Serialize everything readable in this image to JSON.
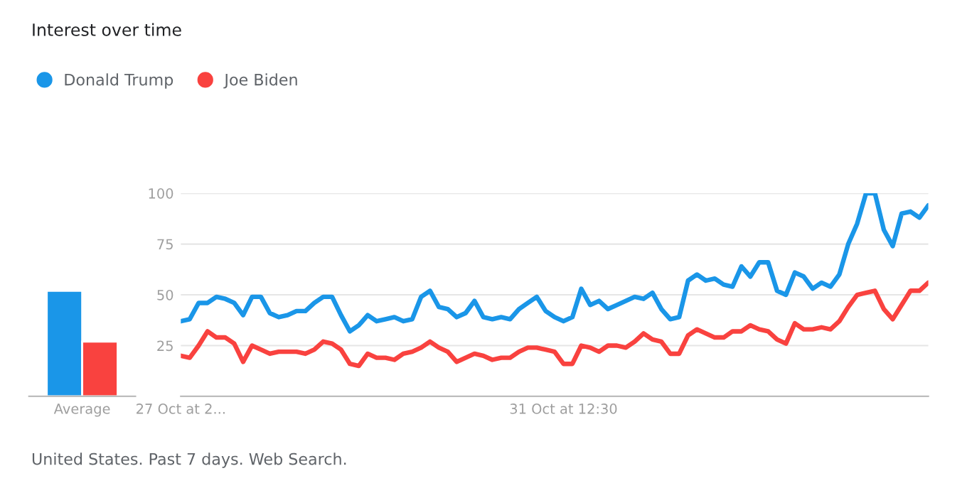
{
  "chart_data": [
    {
      "type": "bar",
      "title": "Interest over time",
      "annotations": [
        "United States. Past 7 days. Web Search."
      ],
      "categories": [
        "Average"
      ],
      "ylim": [
        0,
        100
      ],
      "tick_labels": "x",
      "grid": false,
      "series": [
        {
          "color": "#1a96e8",
          "values": [
            52
          ]
        },
        {
          "color": "#f9423f",
          "values": [
            27
          ]
        }
      ]
    },
    {
      "type": "line",
      "categories": [
        "27 Oct at 2...",
        null,
        null,
        null,
        null,
        null,
        null,
        null,
        null,
        null,
        null,
        null,
        null,
        null,
        null,
        null,
        null,
        null,
        null,
        null,
        null,
        null,
        null,
        null,
        null,
        null,
        null,
        null,
        null,
        null,
        null,
        null,
        null,
        null,
        null,
        null,
        null,
        null,
        null,
        null,
        null,
        null,
        null,
        "31 Oct at 12:30",
        null,
        null,
        null,
        null,
        null,
        null,
        null,
        null,
        null,
        null,
        null,
        null,
        null,
        null,
        null,
        null,
        null,
        null,
        null,
        null,
        null,
        null,
        null,
        null,
        null,
        null,
        null,
        null,
        null,
        null,
        null,
        null,
        null,
        null,
        null,
        null,
        null,
        null,
        null,
        null,
        null
      ],
      "ylim": [
        0,
        100
      ],
      "yticks": [
        25,
        50,
        75,
        100
      ],
      "grid": "y",
      "legend": "top left",
      "series": [
        {
          "name": "Donald Trump",
          "color": "#1a96e8",
          "values": [
            37,
            38,
            46,
            46,
            49,
            48,
            46,
            40,
            49,
            49,
            41,
            39,
            40,
            42,
            42,
            46,
            49,
            49,
            40,
            32,
            35,
            40,
            37,
            38,
            39,
            37,
            38,
            49,
            52,
            44,
            43,
            39,
            41,
            47,
            39,
            38,
            39,
            38,
            43,
            46,
            49,
            42,
            39,
            37,
            39,
            53,
            45,
            47,
            43,
            45,
            47,
            49,
            48,
            51,
            43,
            38,
            39,
            57,
            60,
            57,
            58,
            55,
            54,
            64,
            59,
            66,
            66,
            52,
            50,
            61,
            59,
            53,
            56,
            54,
            60,
            75,
            85,
            100,
            100,
            82,
            74,
            90,
            91,
            88,
            94
          ]
        },
        {
          "name": "Joe Biden",
          "color": "#f9423f",
          "values": [
            20,
            19,
            25,
            32,
            29,
            29,
            26,
            17,
            25,
            23,
            21,
            22,
            22,
            22,
            21,
            23,
            27,
            26,
            23,
            16,
            15,
            21,
            19,
            19,
            18,
            21,
            22,
            24,
            27,
            24,
            22,
            17,
            19,
            21,
            20,
            18,
            19,
            19,
            22,
            24,
            24,
            23,
            22,
            16,
            16,
            25,
            24,
            22,
            25,
            25,
            24,
            27,
            31,
            28,
            27,
            21,
            21,
            30,
            33,
            31,
            29,
            29,
            32,
            32,
            35,
            33,
            32,
            28,
            26,
            36,
            33,
            33,
            34,
            33,
            37,
            44,
            50,
            51,
            52,
            43,
            38,
            45,
            52,
            52,
            56
          ]
        }
      ]
    }
  ]
}
